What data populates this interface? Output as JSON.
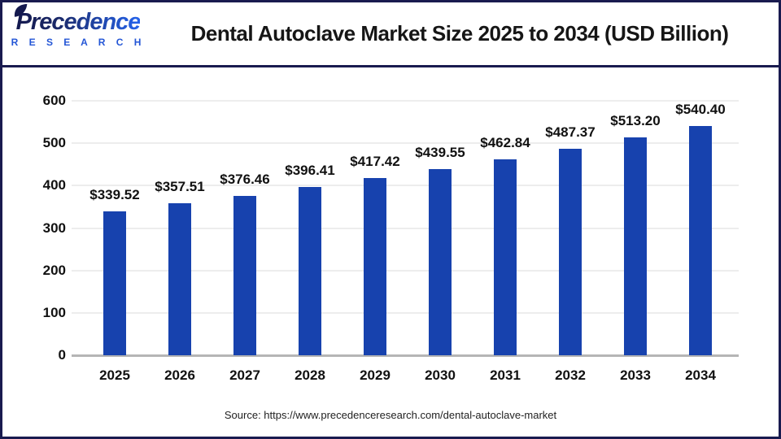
{
  "logo": {
    "brand": "Precedence",
    "sub": "R E S E A R C H"
  },
  "header": {
    "title": "Dental Autoclave Market Size 2025 to 2034 (USD Billion)"
  },
  "source": {
    "label": "Source: https://www.precedenceresearch.com/dental-autoclave-market"
  },
  "colors": {
    "frame": "#191b4f",
    "bar": "#1742ae",
    "grid": "#ededed",
    "baseline": "#b5b5b5",
    "logo_blue": "#2456d6"
  },
  "chart_data": {
    "type": "bar",
    "title": "Dental Autoclave Market Size 2025 to 2034 (USD Billion)",
    "categories": [
      "2025",
      "2026",
      "2027",
      "2028",
      "2029",
      "2030",
      "2031",
      "2032",
      "2033",
      "2034"
    ],
    "values": [
      339.52,
      357.51,
      376.46,
      396.41,
      417.42,
      439.55,
      462.84,
      487.37,
      513.2,
      540.4
    ],
    "value_labels": [
      "$339.52",
      "$357.51",
      "$376.46",
      "$396.41",
      "$417.42",
      "$439.55",
      "$462.84",
      "$487.37",
      "$513.20",
      "$540.40"
    ],
    "xlabel": "",
    "ylabel": "",
    "unit": "USD Billion",
    "ylim": [
      0,
      600
    ],
    "yticks": [
      0,
      100,
      200,
      300,
      400,
      500,
      600
    ],
    "grid": true,
    "legend": false,
    "bar_color": "#1742ae"
  }
}
